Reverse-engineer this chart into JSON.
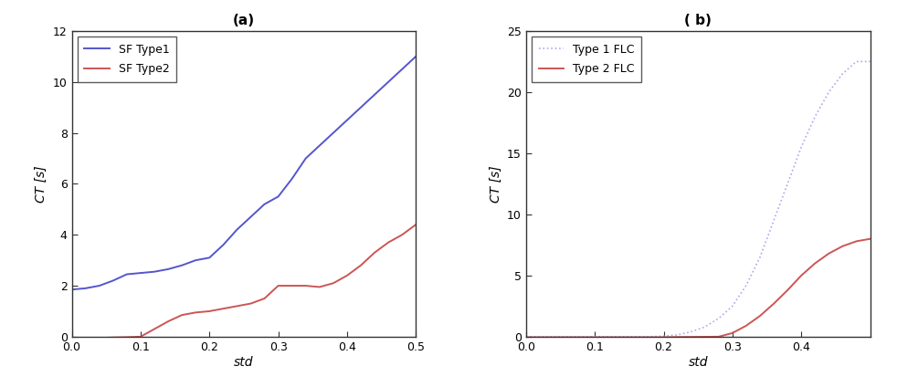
{
  "title_a": "(a)",
  "title_b": "( b)",
  "ylabel": "CT [s]",
  "xlabel": "std",
  "plot_a": {
    "ylim": [
      0,
      12
    ],
    "xlim": [
      0,
      0.5
    ],
    "yticks": [
      0,
      2,
      4,
      6,
      8,
      10,
      12
    ],
    "xticks": [
      0,
      0.1,
      0.2,
      0.3,
      0.4,
      0.5
    ],
    "line1_label": "SF Type1",
    "line1_color": "#5555cc",
    "line1_x": [
      0,
      0.02,
      0.04,
      0.06,
      0.08,
      0.1,
      0.12,
      0.14,
      0.16,
      0.18,
      0.2,
      0.22,
      0.24,
      0.26,
      0.28,
      0.3,
      0.32,
      0.34,
      0.36,
      0.38,
      0.4,
      0.42,
      0.44,
      0.46,
      0.48,
      0.5
    ],
    "line1_y": [
      1.85,
      1.9,
      2.0,
      2.2,
      2.45,
      2.5,
      2.55,
      2.65,
      2.8,
      3.0,
      3.1,
      3.6,
      4.2,
      4.7,
      5.2,
      5.5,
      6.2,
      7.0,
      7.5,
      8.0,
      8.5,
      9.0,
      9.5,
      10.0,
      10.5,
      11.0
    ],
    "line2_label": "SF Type2",
    "line2_color": "#cc5555",
    "line2_x": [
      0,
      0.02,
      0.04,
      0.06,
      0.08,
      0.1,
      0.12,
      0.14,
      0.16,
      0.18,
      0.2,
      0.22,
      0.24,
      0.26,
      0.28,
      0.3,
      0.32,
      0.34,
      0.36,
      0.38,
      0.4,
      0.42,
      0.44,
      0.46,
      0.48,
      0.5
    ],
    "line2_y": [
      -0.05,
      -0.05,
      -0.05,
      -0.03,
      -0.02,
      0.0,
      0.3,
      0.6,
      0.85,
      0.95,
      1.0,
      1.1,
      1.2,
      1.3,
      1.5,
      2.0,
      2.0,
      2.0,
      1.95,
      2.1,
      2.4,
      2.8,
      3.3,
      3.7,
      4.0,
      4.4
    ]
  },
  "plot_b": {
    "ylim": [
      0,
      25
    ],
    "xlim": [
      0,
      0.5
    ],
    "yticks": [
      0,
      5,
      10,
      15,
      20,
      25
    ],
    "xticks": [
      0,
      0.1,
      0.2,
      0.3,
      0.4
    ],
    "line1_label": "Type 1 FLC",
    "line1_color": "#aaaaee",
    "line1_x": [
      0,
      0.02,
      0.04,
      0.06,
      0.08,
      0.1,
      0.12,
      0.14,
      0.16,
      0.18,
      0.2,
      0.22,
      0.24,
      0.26,
      0.28,
      0.3,
      0.32,
      0.34,
      0.36,
      0.38,
      0.4,
      0.42,
      0.44,
      0.46,
      0.48,
      0.5
    ],
    "line1_y": [
      0,
      0,
      0,
      0,
      0,
      0,
      0,
      0,
      0,
      0.0,
      0.05,
      0.15,
      0.4,
      0.8,
      1.5,
      2.5,
      4.2,
      6.5,
      9.5,
      12.5,
      15.5,
      18.0,
      20.0,
      21.5,
      22.5,
      22.5
    ],
    "line1_style": "dotted",
    "line2_label": "Type 2 FLC",
    "line2_color": "#cc5555",
    "line2_x": [
      0,
      0.02,
      0.04,
      0.06,
      0.08,
      0.1,
      0.12,
      0.14,
      0.16,
      0.18,
      0.2,
      0.22,
      0.24,
      0.26,
      0.28,
      0.3,
      0.32,
      0.34,
      0.36,
      0.38,
      0.4,
      0.42,
      0.44,
      0.46,
      0.48,
      0.5
    ],
    "line2_y": [
      -0.05,
      -0.05,
      -0.05,
      -0.05,
      -0.05,
      -0.05,
      -0.05,
      -0.05,
      -0.05,
      -0.05,
      -0.05,
      -0.03,
      -0.02,
      -0.01,
      0.0,
      0.3,
      0.9,
      1.7,
      2.7,
      3.8,
      5.0,
      6.0,
      6.8,
      7.4,
      7.8,
      8.0
    ],
    "line2_style": "solid"
  },
  "background_color": "#ffffff",
  "spine_color": "#333333",
  "title_fontsize": 11,
  "label_fontsize": 10,
  "tick_fontsize": 9,
  "legend_fontsize": 9
}
